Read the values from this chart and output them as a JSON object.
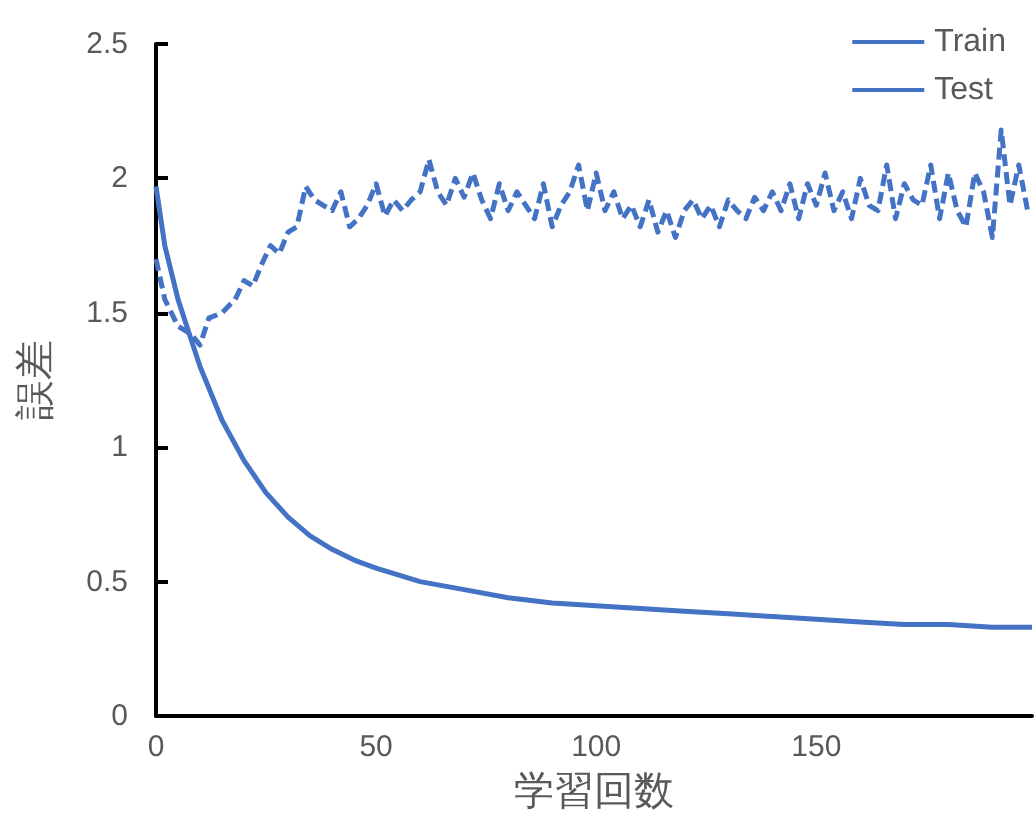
{
  "chart_data": {
    "type": "line",
    "xlabel": "学習回数",
    "ylabel": "誤差",
    "xlim": [
      0,
      199
    ],
    "xticks": [
      0,
      50,
      100,
      150
    ],
    "ylim": [
      0,
      2.5
    ],
    "yticks": [
      0,
      0.5,
      1,
      1.5,
      2,
      2.5
    ],
    "grid": false,
    "legend": "top right",
    "marker": "none",
    "series": [
      {
        "name": "Train",
        "color": "#4472c4",
        "line_style": "solid",
        "x": [
          0,
          2,
          5,
          8,
          10,
          15,
          20,
          25,
          30,
          35,
          40,
          45,
          50,
          60,
          70,
          80,
          90,
          100,
          110,
          120,
          130,
          140,
          150,
          160,
          170,
          180,
          190,
          199
        ],
        "values": [
          1.97,
          1.75,
          1.55,
          1.4,
          1.3,
          1.1,
          0.95,
          0.83,
          0.74,
          0.67,
          0.62,
          0.58,
          0.55,
          0.5,
          0.47,
          0.44,
          0.42,
          0.41,
          0.4,
          0.39,
          0.38,
          0.37,
          0.36,
          0.35,
          0.34,
          0.34,
          0.33,
          0.33
        ]
      },
      {
        "name": "Test",
        "color": "#4472c4",
        "line_style": "dashed",
        "x": [
          0,
          2,
          5,
          8,
          10,
          12,
          15,
          18,
          20,
          22,
          24,
          26,
          28,
          30,
          32,
          34,
          36,
          38,
          40,
          42,
          44,
          46,
          48,
          50,
          52,
          54,
          56,
          58,
          60,
          62,
          64,
          66,
          68,
          70,
          72,
          74,
          76,
          78,
          80,
          82,
          84,
          86,
          88,
          90,
          92,
          94,
          96,
          98,
          100,
          102,
          104,
          106,
          108,
          110,
          112,
          114,
          116,
          118,
          120,
          122,
          124,
          126,
          128,
          130,
          132,
          134,
          136,
          138,
          140,
          142,
          144,
          146,
          148,
          150,
          152,
          154,
          156,
          158,
          160,
          162,
          164,
          166,
          168,
          170,
          172,
          174,
          176,
          178,
          180,
          182,
          184,
          186,
          188,
          190,
          192,
          194,
          196,
          198
        ],
        "values": [
          1.7,
          1.55,
          1.45,
          1.42,
          1.38,
          1.48,
          1.5,
          1.55,
          1.62,
          1.6,
          1.68,
          1.75,
          1.72,
          1.8,
          1.82,
          1.97,
          1.92,
          1.9,
          1.88,
          1.95,
          1.82,
          1.85,
          1.9,
          1.98,
          1.86,
          1.92,
          1.88,
          1.92,
          1.95,
          2.07,
          1.95,
          1.9,
          2.0,
          1.93,
          2.02,
          1.92,
          1.85,
          1.98,
          1.88,
          1.95,
          1.9,
          1.85,
          1.98,
          1.82,
          1.9,
          1.95,
          2.05,
          1.88,
          2.02,
          1.88,
          1.95,
          1.85,
          1.9,
          1.82,
          1.92,
          1.8,
          1.88,
          1.78,
          1.88,
          1.92,
          1.85,
          1.9,
          1.82,
          1.92,
          1.88,
          1.85,
          1.93,
          1.88,
          1.95,
          1.88,
          1.98,
          1.85,
          1.98,
          1.9,
          2.02,
          1.88,
          1.95,
          1.85,
          2.0,
          1.9,
          1.88,
          2.05,
          1.85,
          1.98,
          1.92,
          1.9,
          2.05,
          1.85,
          2.02,
          1.88,
          1.82,
          2.02,
          1.95,
          1.78,
          2.18,
          1.9,
          2.05,
          1.88
        ]
      }
    ]
  }
}
